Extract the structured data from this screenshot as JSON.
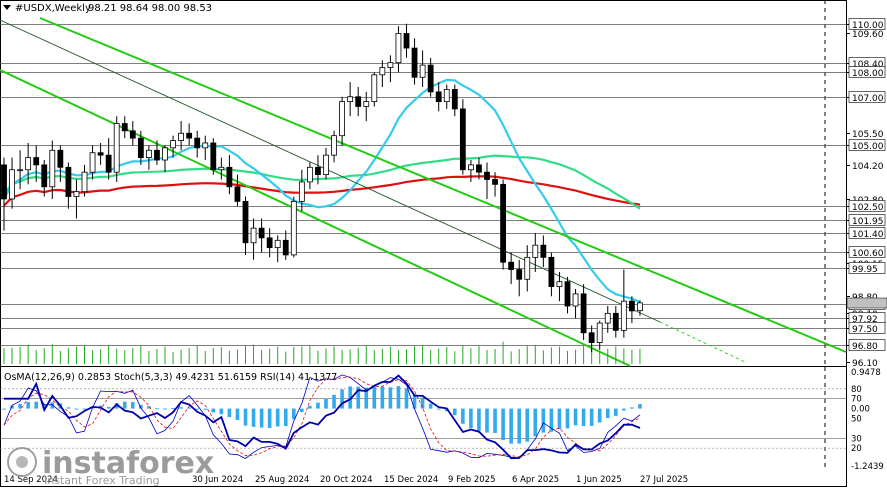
{
  "header": {
    "symbol_label": "#USDX,Weekly",
    "ohlc_label": "98.21 98.64 98.00 98.53"
  },
  "price_levels": [
    "110.00",
    "109.60",
    "108.40",
    "108.00",
    "107.00",
    "105.50",
    "105.00",
    "104.20",
    "102.80",
    "102.50",
    "101.95",
    "101.40",
    "100.60",
    "100.15",
    "99.95",
    "98.80",
    "98.47",
    "98.10",
    "97.92",
    "97.50",
    "96.80",
    "96.10"
  ],
  "highlighted_levels": [
    "110.00",
    "108.40",
    "108.00",
    "107.00",
    "105.00",
    "102.50",
    "101.95",
    "101.40",
    "100.60",
    "99.95",
    "98.47",
    "97.92",
    "97.50",
    "96.80"
  ],
  "x_labels": [
    "14 Sep 2024",
    "30 Jun 2024",
    "25 Aug 2024",
    "20 Oct 2024",
    "15 Dec 2024",
    "9 Feb 2025",
    "6 Apr 2025",
    "1 Jun 2025",
    "27 Jul 2025"
  ],
  "indicator": {
    "label": "OsMA(12,26,9) 0.2853  Stoch(5,3,3) 49.4231 51.6159  RSI(14) 41.1377",
    "levels": [
      "0.9478",
      "80",
      "70",
      "0.00",
      "50",
      "30",
      "20",
      "-1.2439"
    ]
  },
  "watermark": {
    "brand": "instaforex",
    "tagline": "Instant Forex Trading"
  },
  "colors": {
    "bull": "#ffffff",
    "bear": "#000000",
    "ma_fast": "#33ccee",
    "ma_mid": "#33dd88",
    "ma_slow": "#dd1111",
    "channel": "#22cc11",
    "trend_thin": "#225522",
    "osma": "#33aaee",
    "stoch_main": "#0000cc",
    "stoch_signal": "#dd1111",
    "rsi": "#0000aa"
  },
  "chart_data": {
    "type": "candlestick",
    "timeframe": "Weekly",
    "ylim": [
      96.1,
      110.4
    ],
    "candles": [
      [
        104.2,
        104.5,
        101.5,
        102.8
      ],
      [
        102.8,
        104.5,
        102.4,
        104.0
      ],
      [
        104.0,
        104.8,
        103.2,
        104.0
      ],
      [
        104.0,
        105.1,
        103.4,
        104.5
      ],
      [
        104.5,
        105.0,
        103.5,
        104.2
      ],
      [
        104.2,
        104.4,
        102.9,
        103.3
      ],
      [
        103.3,
        105.2,
        102.8,
        104.8
      ],
      [
        104.8,
        105.0,
        103.5,
        104.1
      ],
      [
        104.1,
        104.3,
        102.4,
        102.9
      ],
      [
        102.9,
        103.6,
        102.0,
        103.1
      ],
      [
        103.1,
        104.2,
        102.9,
        103.9
      ],
      [
        103.9,
        105.0,
        103.6,
        104.7
      ],
      [
        104.7,
        105.1,
        104.2,
        104.6
      ],
      [
        104.6,
        105.3,
        103.6,
        103.9
      ],
      [
        103.9,
        106.2,
        103.5,
        105.9
      ],
      [
        105.9,
        106.2,
        105.3,
        105.6
      ],
      [
        105.6,
        106.0,
        105.0,
        105.3
      ],
      [
        105.3,
        105.6,
        104.2,
        104.5
      ],
      [
        104.5,
        105.0,
        104.0,
        104.8
      ],
      [
        104.8,
        105.2,
        104.2,
        104.4
      ],
      [
        104.4,
        105.0,
        103.9,
        104.9
      ],
      [
        104.9,
        105.4,
        104.5,
        105.2
      ],
      [
        105.2,
        106.0,
        104.8,
        105.5
      ],
      [
        105.5,
        105.9,
        105.0,
        105.3
      ],
      [
        105.3,
        105.6,
        104.5,
        104.9
      ],
      [
        104.9,
        105.4,
        104.4,
        105.1
      ],
      [
        105.1,
        105.3,
        103.8,
        104.0
      ],
      [
        104.0,
        104.5,
        103.6,
        104.1
      ],
      [
        104.1,
        104.6,
        103.0,
        103.3
      ],
      [
        103.3,
        103.8,
        102.5,
        102.7
      ],
      [
        102.7,
        102.9,
        100.5,
        101.0
      ],
      [
        101.0,
        102.0,
        100.3,
        101.6
      ],
      [
        101.6,
        102.0,
        100.6,
        101.2
      ],
      [
        101.2,
        101.6,
        100.4,
        100.8
      ],
      [
        100.8,
        101.3,
        100.2,
        101.1
      ],
      [
        101.1,
        101.5,
        100.3,
        100.5
      ],
      [
        100.5,
        102.9,
        100.4,
        102.7
      ],
      [
        102.7,
        104.0,
        102.3,
        103.5
      ],
      [
        103.5,
        104.3,
        103.2,
        104.1
      ],
      [
        104.1,
        104.6,
        103.4,
        103.8
      ],
      [
        103.8,
        104.9,
        103.6,
        104.6
      ],
      [
        104.6,
        105.6,
        104.3,
        105.4
      ],
      [
        105.4,
        107.0,
        105.0,
        106.8
      ],
      [
        106.8,
        107.6,
        106.2,
        107.0
      ],
      [
        107.0,
        107.4,
        106.2,
        106.6
      ],
      [
        106.6,
        107.2,
        106.0,
        106.8
      ],
      [
        106.8,
        108.0,
        106.6,
        107.9
      ],
      [
        107.9,
        108.5,
        107.4,
        108.2
      ],
      [
        108.2,
        108.7,
        107.6,
        108.4
      ],
      [
        108.4,
        109.9,
        108.0,
        109.6
      ],
      [
        109.6,
        110.0,
        108.6,
        109.0
      ],
      [
        109.0,
        109.4,
        107.5,
        107.8
      ],
      [
        107.8,
        108.9,
        107.4,
        108.3
      ],
      [
        108.3,
        108.6,
        107.0,
        107.2
      ],
      [
        107.2,
        107.6,
        106.4,
        106.8
      ],
      [
        106.8,
        107.5,
        106.5,
        107.3
      ],
      [
        107.3,
        107.5,
        106.2,
        106.5
      ],
      [
        106.5,
        106.9,
        103.8,
        104.0
      ],
      [
        104.0,
        104.4,
        103.5,
        104.2
      ],
      [
        104.2,
        104.5,
        103.6,
        103.9
      ],
      [
        103.9,
        104.3,
        102.8,
        103.6
      ],
      [
        103.6,
        103.9,
        102.9,
        103.4
      ],
      [
        103.4,
        103.6,
        99.9,
        100.2
      ],
      [
        100.2,
        100.6,
        99.3,
        99.9
      ],
      [
        99.9,
        100.3,
        98.8,
        99.5
      ],
      [
        99.5,
        100.9,
        99.0,
        100.4
      ],
      [
        100.4,
        101.4,
        99.8,
        100.9
      ],
      [
        100.9,
        101.3,
        100.0,
        100.4
      ],
      [
        100.4,
        100.6,
        98.8,
        99.2
      ],
      [
        99.2,
        99.8,
        98.6,
        99.4
      ],
      [
        99.4,
        99.6,
        98.1,
        98.4
      ],
      [
        98.4,
        99.1,
        97.9,
        98.9
      ],
      [
        98.9,
        99.3,
        97.0,
        97.3
      ],
      [
        97.3,
        97.6,
        96.5,
        96.9
      ],
      [
        96.9,
        97.8,
        96.6,
        97.7
      ],
      [
        97.7,
        98.4,
        97.3,
        98.1
      ],
      [
        98.1,
        98.4,
        97.1,
        97.4
      ],
      [
        97.4,
        99.9,
        97.1,
        98.6
      ],
      [
        98.6,
        98.8,
        97.7,
        98.2
      ],
      [
        98.21,
        98.64,
        98.0,
        98.53
      ]
    ]
  }
}
